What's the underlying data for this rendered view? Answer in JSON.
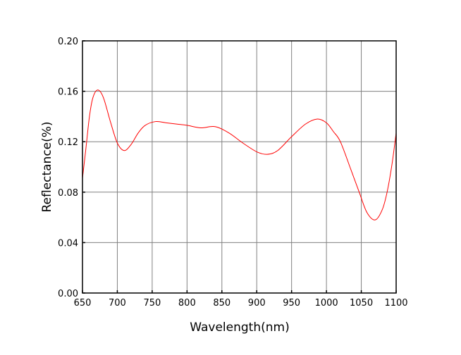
{
  "chart_data": {
    "type": "line",
    "title": "",
    "xlabel": "Wavelength(nm)",
    "ylabel": "Reflectance(%)",
    "xlim": [
      650,
      1100
    ],
    "ylim": [
      0.0,
      0.2
    ],
    "xticks": [
      "650",
      "700",
      "750",
      "800",
      "850",
      "900",
      "950",
      "1000",
      "1050",
      "1100"
    ],
    "yticks": [
      "0.00",
      "0.04",
      "0.08",
      "0.12",
      "0.16",
      "0.20"
    ],
    "grid": true,
    "line_color": "#ff0000",
    "grid_color": "#808080",
    "series": [
      {
        "x": [
          650,
          655,
          660,
          665,
          672,
          680,
          690,
          700,
          710,
          720,
          730,
          740,
          755,
          770,
          785,
          800,
          820,
          840,
          860,
          880,
          900,
          915,
          930,
          950,
          970,
          987,
          1000,
          1010,
          1020,
          1035,
          1047,
          1058,
          1070,
          1080,
          1087,
          1094,
          1100
        ],
        "y": [
          0.091,
          0.115,
          0.14,
          0.155,
          0.161,
          0.155,
          0.136,
          0.119,
          0.113,
          0.118,
          0.127,
          0.133,
          0.136,
          0.135,
          0.134,
          0.133,
          0.131,
          0.132,
          0.127,
          0.119,
          0.112,
          0.11,
          0.113,
          0.124,
          0.134,
          0.138,
          0.135,
          0.128,
          0.12,
          0.098,
          0.08,
          0.064,
          0.058,
          0.066,
          0.08,
          0.102,
          0.127
        ]
      }
    ]
  }
}
